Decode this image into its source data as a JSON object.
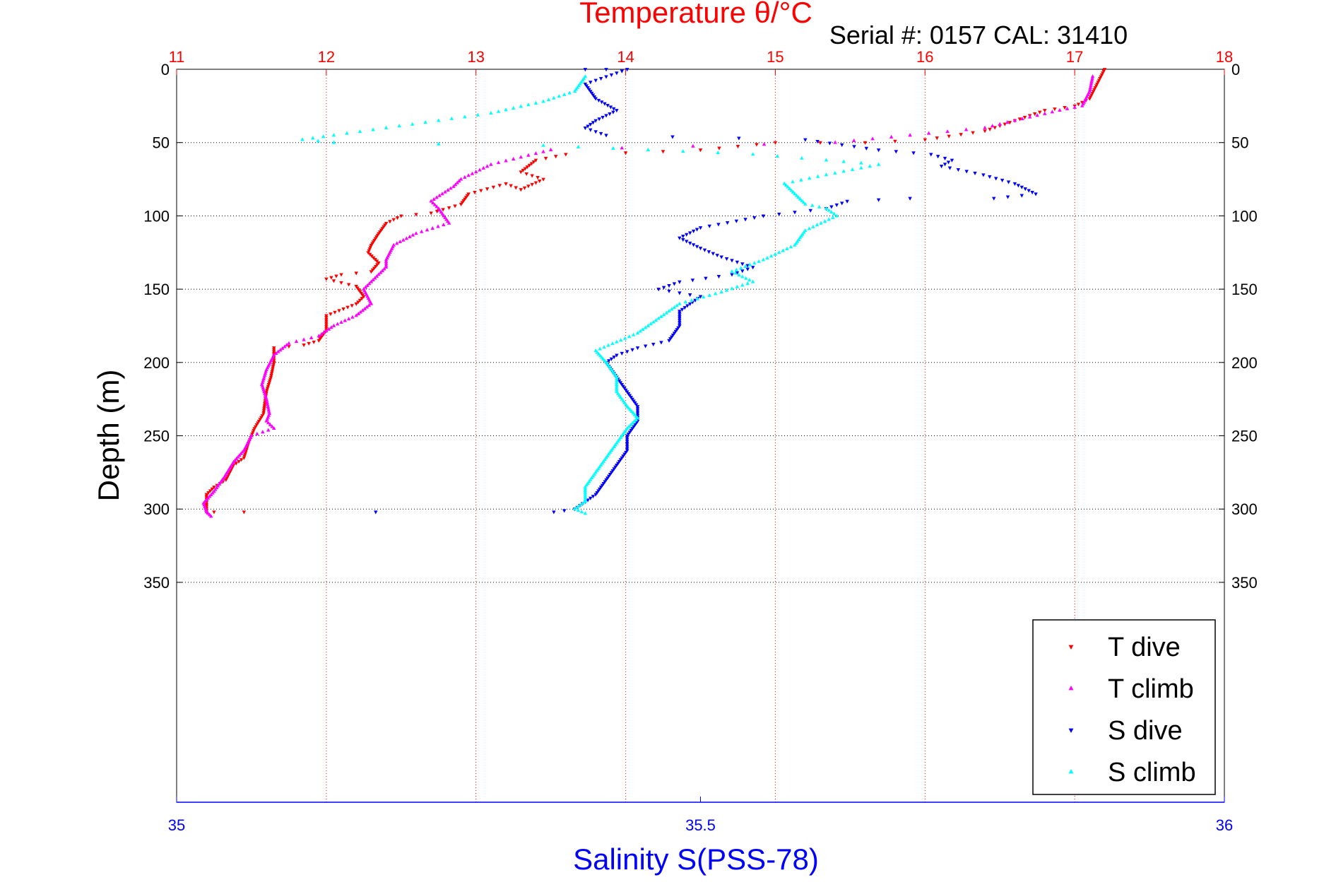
{
  "chart_data": {
    "type": "scatter",
    "title": "Temperature θ/°C",
    "subtitle": "Serial #: 0157  CAL: 31410",
    "xlabel": "Salinity S(PSS-78)",
    "ylabel": "Depth (m)",
    "grid": true,
    "legend_position": "bottom-right",
    "axes": {
      "temperature": {
        "range": [
          11,
          18
        ],
        "ticks": [
          "11",
          "12",
          "13",
          "14",
          "15",
          "16",
          "17",
          "18"
        ],
        "color": "#ff0000"
      },
      "salinity": {
        "range": [
          35,
          36
        ],
        "ticks": [
          "35",
          "35.5",
          "36"
        ],
        "color": "#0000ff"
      },
      "depth": {
        "range": [
          0,
          500
        ],
        "reversed": true,
        "ticks": [
          "0",
          "50",
          "100",
          "150",
          "200",
          "250",
          "300",
          "350"
        ],
        "tick_values": [
          0,
          50,
          100,
          150,
          200,
          250,
          300,
          350
        ]
      }
    },
    "series": [
      {
        "name": "T dive",
        "axis": "temperature",
        "color": "#ff0000",
        "marker": "triangle-down",
        "points": [
          [
            17.2,
            0
          ],
          [
            17.15,
            10
          ],
          [
            17.1,
            20
          ],
          [
            17.0,
            25
          ],
          [
            16.8,
            28
          ],
          [
            16.6,
            35
          ],
          [
            16.4,
            42
          ],
          [
            16.0,
            48
          ],
          [
            15.6,
            50
          ],
          [
            15.3,
            50
          ],
          [
            15.0,
            50
          ],
          [
            14.5,
            55
          ],
          [
            14.0,
            57
          ],
          [
            13.6,
            58
          ],
          [
            13.4,
            62
          ],
          [
            13.3,
            70
          ],
          [
            13.45,
            75
          ],
          [
            13.3,
            82
          ],
          [
            13.2,
            78
          ],
          [
            12.95,
            85
          ],
          [
            12.9,
            92
          ],
          [
            12.7,
            98
          ],
          [
            12.5,
            100
          ],
          [
            12.4,
            105
          ],
          [
            12.35,
            112
          ],
          [
            12.3,
            120
          ],
          [
            12.28,
            125
          ],
          [
            12.35,
            132
          ],
          [
            12.3,
            138
          ],
          [
            12.1,
            140
          ],
          [
            12.0,
            143
          ],
          [
            12.2,
            148
          ],
          [
            12.25,
            155
          ],
          [
            12.2,
            160
          ],
          [
            12.0,
            168
          ],
          [
            12.0,
            178
          ],
          [
            11.95,
            185
          ],
          [
            11.85,
            188
          ],
          [
            11.65,
            190
          ],
          [
            11.65,
            200
          ],
          [
            11.63,
            210
          ],
          [
            11.6,
            220
          ],
          [
            11.58,
            235
          ],
          [
            11.52,
            245
          ],
          [
            11.48,
            255
          ],
          [
            11.45,
            265
          ],
          [
            11.38,
            270
          ],
          [
            11.33,
            280
          ],
          [
            11.25,
            285
          ],
          [
            11.2,
            290
          ],
          [
            11.2,
            298
          ],
          [
            11.2,
            302
          ],
          [
            11.25,
            302
          ],
          [
            11.45,
            302
          ]
        ]
      },
      {
        "name": "T climb",
        "axis": "temperature",
        "color": "#ff00ff",
        "marker": "triangle-up",
        "points": [
          [
            17.12,
            5
          ],
          [
            17.1,
            15
          ],
          [
            17.05,
            25
          ],
          [
            16.9,
            28
          ],
          [
            16.6,
            35
          ],
          [
            16.4,
            40
          ],
          [
            15.4,
            50
          ],
          [
            13.5,
            55
          ],
          [
            13.3,
            60
          ],
          [
            13.1,
            65
          ],
          [
            12.9,
            75
          ],
          [
            12.85,
            80
          ],
          [
            12.7,
            90
          ],
          [
            12.75,
            95
          ],
          [
            12.82,
            105
          ],
          [
            12.6,
            112
          ],
          [
            12.45,
            120
          ],
          [
            12.4,
            130
          ],
          [
            12.4,
            135
          ],
          [
            12.3,
            145
          ],
          [
            12.25,
            150
          ],
          [
            12.3,
            160
          ],
          [
            12.2,
            168
          ],
          [
            12.05,
            175
          ],
          [
            11.95,
            182
          ],
          [
            11.75,
            187
          ],
          [
            11.65,
            195
          ],
          [
            11.6,
            205
          ],
          [
            11.57,
            215
          ],
          [
            11.6,
            225
          ],
          [
            11.62,
            235
          ],
          [
            11.6,
            240
          ],
          [
            11.65,
            245
          ],
          [
            11.5,
            250
          ],
          [
            11.45,
            260
          ],
          [
            11.38,
            268
          ],
          [
            11.32,
            278
          ],
          [
            11.25,
            288
          ],
          [
            11.18,
            296
          ],
          [
            11.2,
            302
          ],
          [
            11.23,
            305
          ]
        ]
      },
      {
        "name": "S dive",
        "axis": "salinity",
        "color": "#0000ff",
        "marker": "triangle-down",
        "points": [
          [
            35.39,
            0
          ],
          [
            35.41,
            0
          ],
          [
            35.43,
            0
          ],
          [
            35.39,
            10
          ],
          [
            35.4,
            20
          ],
          [
            35.42,
            28
          ],
          [
            35.4,
            35
          ],
          [
            35.39,
            40
          ],
          [
            35.41,
            45
          ],
          [
            35.6,
            48
          ],
          [
            35.67,
            55
          ],
          [
            35.72,
            58
          ],
          [
            35.74,
            62
          ],
          [
            35.73,
            66
          ],
          [
            35.77,
            72
          ],
          [
            35.8,
            78
          ],
          [
            35.82,
            85
          ],
          [
            35.78,
            88
          ],
          [
            35.7,
            88
          ],
          [
            35.64,
            90
          ],
          [
            35.62,
            95
          ],
          [
            35.56,
            100
          ],
          [
            35.5,
            108
          ],
          [
            35.48,
            115
          ],
          [
            35.5,
            122
          ],
          [
            35.52,
            128
          ],
          [
            35.55,
            135
          ],
          [
            35.53,
            140
          ],
          [
            35.48,
            145
          ],
          [
            35.46,
            150
          ],
          [
            35.5,
            155
          ],
          [
            35.49,
            160
          ],
          [
            35.48,
            165
          ],
          [
            35.48,
            175
          ],
          [
            35.47,
            185
          ],
          [
            35.44,
            190
          ],
          [
            35.42,
            195
          ],
          [
            35.41,
            200
          ],
          [
            35.42,
            210
          ],
          [
            35.43,
            220
          ],
          [
            35.44,
            230
          ],
          [
            35.44,
            240
          ],
          [
            35.43,
            250
          ],
          [
            35.43,
            260
          ],
          [
            35.42,
            270
          ],
          [
            35.41,
            280
          ],
          [
            35.4,
            290
          ],
          [
            35.39,
            295
          ],
          [
            35.38,
            300
          ],
          [
            35.36,
            302
          ],
          [
            35.19,
            302
          ]
        ]
      },
      {
        "name": "S climb",
        "axis": "salinity",
        "color": "#00ffff",
        "marker": "triangle-up",
        "points": [
          [
            35.39,
            5
          ],
          [
            35.38,
            15
          ],
          [
            35.35,
            22
          ],
          [
            35.3,
            30
          ],
          [
            35.25,
            35
          ],
          [
            35.2,
            40
          ],
          [
            35.15,
            45
          ],
          [
            35.12,
            48
          ],
          [
            35.15,
            50
          ],
          [
            35.35,
            52
          ],
          [
            35.45,
            55
          ],
          [
            35.55,
            58
          ],
          [
            35.62,
            62
          ],
          [
            35.67,
            65
          ],
          [
            35.62,
            72
          ],
          [
            35.58,
            78
          ],
          [
            35.59,
            85
          ],
          [
            35.6,
            92
          ],
          [
            35.62,
            95
          ],
          [
            35.63,
            100
          ],
          [
            35.6,
            110
          ],
          [
            35.59,
            120
          ],
          [
            35.56,
            130
          ],
          [
            35.53,
            138
          ],
          [
            35.55,
            145
          ],
          [
            35.52,
            152
          ],
          [
            35.48,
            160
          ],
          [
            35.46,
            170
          ],
          [
            35.44,
            180
          ],
          [
            35.42,
            186
          ],
          [
            35.4,
            192
          ],
          [
            35.41,
            200
          ],
          [
            35.42,
            210
          ],
          [
            35.42,
            220
          ],
          [
            35.43,
            230
          ],
          [
            35.44,
            238
          ],
          [
            35.43,
            245
          ],
          [
            35.42,
            255
          ],
          [
            35.41,
            265
          ],
          [
            35.4,
            275
          ],
          [
            35.39,
            285
          ],
          [
            35.39,
            295
          ],
          [
            35.38,
            300
          ],
          [
            35.39,
            303
          ]
        ]
      }
    ]
  }
}
